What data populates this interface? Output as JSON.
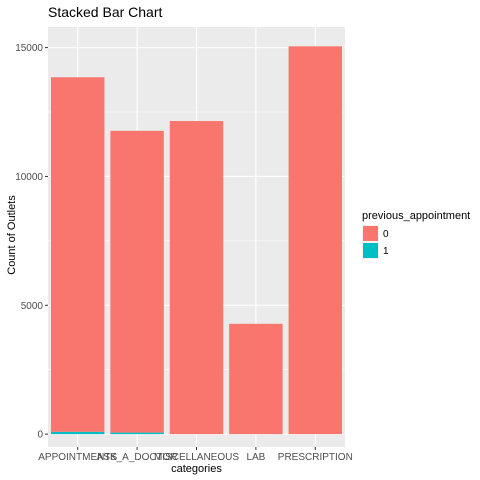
{
  "chart_data": {
    "type": "bar",
    "stacked": true,
    "title": "Stacked Bar Chart",
    "xlabel": "categories",
    "ylabel": "Count of Outlets",
    "categories": [
      "APPOINTMENTS",
      "ASK_A_DOCTOR",
      "MISCELLANEOUS",
      "LAB",
      "PRESCRIPTION"
    ],
    "series": [
      {
        "name": "1",
        "color": "#00BFC4",
        "values": [
          90,
          60,
          0,
          0,
          0
        ]
      },
      {
        "name": "0",
        "color": "#F8766D",
        "values": [
          13760,
          11710,
          12150,
          4280,
          15050
        ]
      }
    ],
    "yticks": [
      0,
      5000,
      10000,
      15000
    ],
    "ytick_labels": [
      "0",
      "5000",
      "10000",
      "15000"
    ],
    "ylim": [
      -500,
      15800
    ],
    "grid": true,
    "legend": {
      "title": "previous_appointment",
      "position": "right",
      "entries": [
        {
          "label": "0",
          "color": "#F8766D"
        },
        {
          "label": "1",
          "color": "#00BFC4"
        }
      ]
    },
    "panel_background": "#EBEBEB",
    "grid_color": "#FFFFFF",
    "tick_color": "#333333"
  }
}
